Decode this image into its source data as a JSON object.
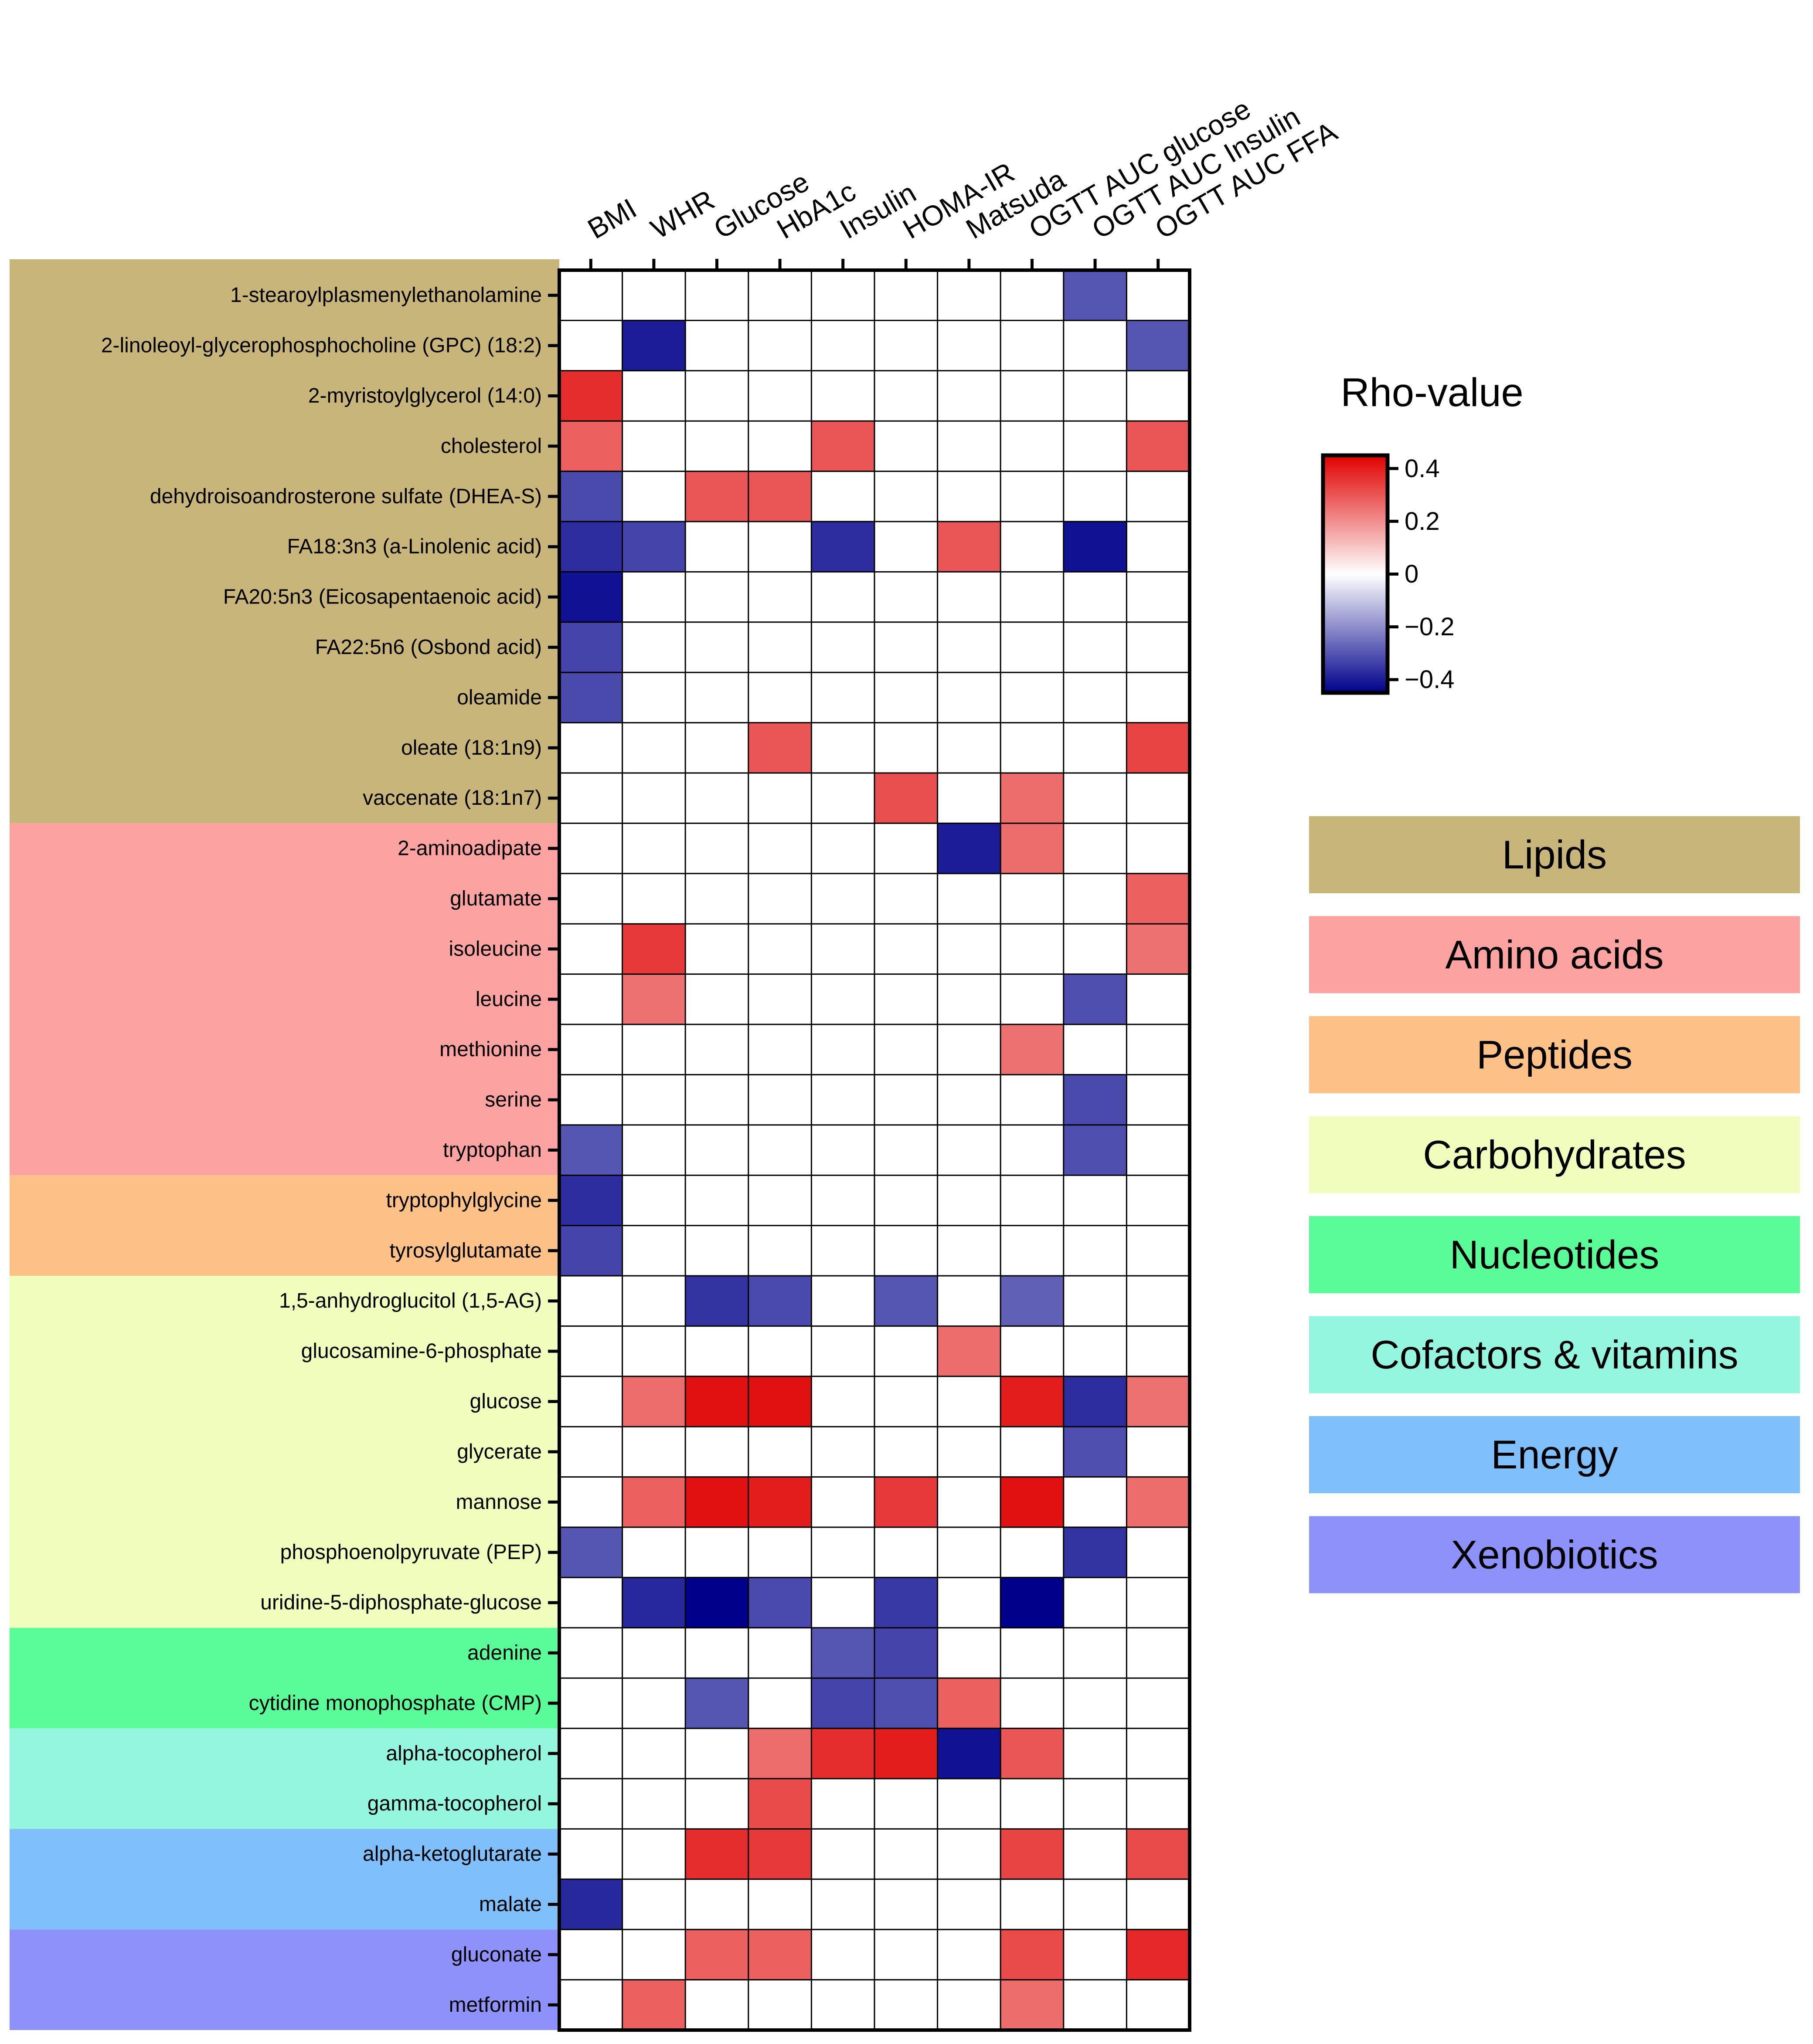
{
  "chart_data": {
    "type": "heatmap",
    "title": "",
    "colorbar": {
      "title": "Rho-value",
      "range": [
        -0.45,
        0.45
      ],
      "ticks": [
        0.4,
        0.2,
        0,
        -0.2,
        -0.4
      ],
      "tick_labels": [
        "0.4",
        "0.2",
        "0",
        "−0.2",
        "−0.4"
      ],
      "colors": {
        "low": "#00008b",
        "mid": "#ffffff",
        "high": "#e00000"
      }
    },
    "columns": [
      "BMI",
      "WHR",
      "Glucose",
      "HbA1c",
      "Insulin",
      "HOMA-IR",
      "Matsuda",
      "OGTT AUC glucose",
      "OGTT AUC Insulin",
      "OGTT AUC FFA"
    ],
    "rows": [
      {
        "label": "1-stearoylplasmenylethanolamine",
        "class": 0
      },
      {
        "label": "2-linoleoyl-glycerophosphocholine (GPC) (18:2)",
        "class": 0
      },
      {
        "label": "2-myristoylglycerol (14:0)",
        "class": 0
      },
      {
        "label": "cholesterol",
        "class": 0
      },
      {
        "label": "dehydroisoandrosterone sulfate (DHEA-S)",
        "class": 0
      },
      {
        "label": "FA18:3n3 (a-Linolenic acid)",
        "class": 0
      },
      {
        "label": "FA20:5n3 (Eicosapentaenoic acid)",
        "class": 0
      },
      {
        "label": "FA22:5n6 (Osbond acid)",
        "class": 0
      },
      {
        "label": "oleamide",
        "class": 0
      },
      {
        "label": "oleate (18:1n9)",
        "class": 0
      },
      {
        "label": "vaccenate (18:1n7)",
        "class": 0
      },
      {
        "label": "2-aminoadipate",
        "class": 1
      },
      {
        "label": "glutamate",
        "class": 1
      },
      {
        "label": "isoleucine",
        "class": 1
      },
      {
        "label": "leucine",
        "class": 1
      },
      {
        "label": "methionine",
        "class": 1
      },
      {
        "label": "serine",
        "class": 1
      },
      {
        "label": "tryptophan",
        "class": 1
      },
      {
        "label": "tryptophylglycine",
        "class": 2
      },
      {
        "label": "tyrosylglutamate",
        "class": 2
      },
      {
        "label": "1,5-anhydroglucitol (1,5-AG)",
        "class": 3
      },
      {
        "label": "glucosamine-6-phosphate",
        "class": 3
      },
      {
        "label": "glucose",
        "class": 3
      },
      {
        "label": "glycerate",
        "class": 3
      },
      {
        "label": "mannose",
        "class": 3
      },
      {
        "label": "phosphoenolpyruvate (PEP)",
        "class": 3
      },
      {
        "label": "uridine-5-diphosphate-glucose",
        "class": 3
      },
      {
        "label": "adenine",
        "class": 4
      },
      {
        "label": "cytidine monophosphate (CMP)",
        "class": 4
      },
      {
        "label": "alpha-tocopherol",
        "class": 5
      },
      {
        "label": "gamma-tocopherol",
        "class": 5
      },
      {
        "label": "alpha-ketoglutarate",
        "class": 6
      },
      {
        "label": "malate",
        "class": 6
      },
      {
        "label": "gluconate",
        "class": 7
      },
      {
        "label": "metformin",
        "class": 7
      }
    ],
    "classes": [
      {
        "name": "Lipids",
        "color": "#c8b57a"
      },
      {
        "name": "Amino acids",
        "color": "#fca3a2"
      },
      {
        "name": "Peptides",
        "color": "#fdc086"
      },
      {
        "name": "Carbohydrates",
        "color": "#f0fdbd"
      },
      {
        "name": "Nucleotides",
        "color": "#5afc98"
      },
      {
        "name": "Cofactors & vitamins",
        "color": "#95f6e0"
      },
      {
        "name": "Energy",
        "color": "#7fbffb"
      },
      {
        "name": "Xenobiotics",
        "color": "#8f91fb"
      }
    ],
    "values": [
      [
        0,
        0,
        0,
        0,
        0,
        0,
        0,
        0,
        -0.3,
        0
      ],
      [
        0,
        -0.4,
        0,
        0,
        0,
        0,
        0,
        0,
        0,
        -0.3
      ],
      [
        0.37,
        0,
        0,
        0,
        0,
        0,
        0,
        0,
        0,
        0
      ],
      [
        0.28,
        0,
        0,
        0,
        0.3,
        0,
        0,
        0,
        0,
        0.3
      ],
      [
        -0.32,
        0,
        0.3,
        0.3,
        0,
        0,
        0,
        0,
        0,
        0
      ],
      [
        -0.37,
        -0.33,
        0,
        0,
        -0.37,
        0,
        0.3,
        0,
        -0.42,
        0
      ],
      [
        -0.42,
        0,
        0,
        0,
        0,
        0,
        0,
        0,
        0,
        0
      ],
      [
        -0.33,
        0,
        0,
        0,
        0,
        0,
        0,
        0,
        0,
        0
      ],
      [
        -0.32,
        0,
        0,
        0,
        0,
        0,
        0,
        0,
        0,
        0
      ],
      [
        0,
        0,
        0,
        0.3,
        0,
        0,
        0,
        0,
        0,
        0.33
      ],
      [
        0,
        0,
        0,
        0,
        0,
        0.31,
        0,
        0.26,
        0,
        0
      ],
      [
        0,
        0,
        0,
        0,
        0,
        0,
        -0.4,
        0.26,
        0,
        0
      ],
      [
        0,
        0,
        0,
        0,
        0,
        0,
        0,
        0,
        0,
        0.28
      ],
      [
        0,
        0.35,
        0,
        0,
        0,
        0,
        0,
        0,
        0,
        0.25
      ],
      [
        0,
        0.25,
        0,
        0,
        0,
        0,
        0,
        0,
        -0.31,
        0
      ],
      [
        0,
        0,
        0,
        0,
        0,
        0,
        0,
        0.25,
        0,
        0
      ],
      [
        0,
        0,
        0,
        0,
        0,
        0,
        0,
        0,
        -0.32,
        0
      ],
      [
        -0.3,
        0,
        0,
        0,
        0,
        0,
        0,
        0,
        -0.31,
        0
      ],
      [
        -0.37,
        0,
        0,
        0,
        0,
        0,
        0,
        0,
        0,
        0
      ],
      [
        -0.33,
        0,
        0,
        0,
        0,
        0,
        0,
        0,
        0,
        0
      ],
      [
        0,
        0,
        -0.36,
        -0.32,
        0,
        -0.3,
        0,
        -0.28,
        0,
        0
      ],
      [
        0,
        0,
        0,
        0,
        0,
        0,
        0.26,
        0,
        0,
        0
      ],
      [
        0,
        0.26,
        0.42,
        0.42,
        0,
        0,
        0,
        0.4,
        -0.37,
        0.25
      ],
      [
        0,
        0,
        0,
        0,
        0,
        0,
        0,
        0,
        -0.31,
        0
      ],
      [
        0,
        0.28,
        0.42,
        0.4,
        0,
        0.35,
        0,
        0.42,
        0,
        0.26
      ],
      [
        -0.3,
        0,
        0,
        0,
        0,
        0,
        0,
        0,
        -0.36,
        0
      ],
      [
        0,
        -0.38,
        -0.45,
        -0.32,
        0,
        -0.35,
        0,
        -0.45,
        0,
        0
      ],
      [
        0,
        0,
        0,
        0,
        -0.3,
        -0.33,
        0,
        0,
        0,
        0
      ],
      [
        0,
        0,
        -0.3,
        0,
        -0.33,
        -0.31,
        0.28,
        0,
        0,
        0
      ],
      [
        0,
        0,
        0,
        0.26,
        0.37,
        0.4,
        -0.42,
        0.3,
        0,
        0
      ],
      [
        0,
        0,
        0,
        0.32,
        0,
        0,
        0,
        0,
        0,
        0
      ],
      [
        0,
        0,
        0.37,
        0.35,
        0,
        0,
        0,
        0.33,
        0,
        0.32
      ],
      [
        -0.38,
        0,
        0,
        0,
        0,
        0,
        0,
        0,
        0,
        0
      ],
      [
        0,
        0,
        0.28,
        0.28,
        0,
        0,
        0,
        0.32,
        0,
        0.38
      ],
      [
        0,
        0.28,
        0,
        0,
        0,
        0,
        0,
        0.26,
        0,
        0
      ]
    ]
  }
}
